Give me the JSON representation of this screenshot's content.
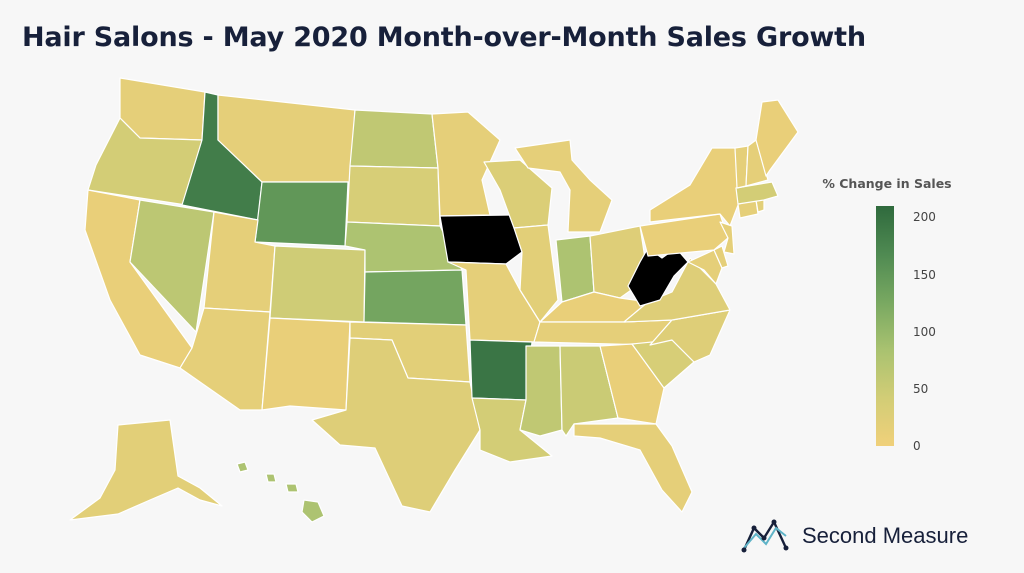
{
  "title": "Hair Salons - May 2020 Month-over-Month Sales Growth",
  "legend": {
    "title": "% Change in Sales",
    "min": 0,
    "max": 210,
    "ticks": [
      "200",
      "150",
      "100",
      "50",
      "0"
    ],
    "colors": [
      "#f0d07a",
      "#d2cd76",
      "#a9c270",
      "#78a861",
      "#4f8a52",
      "#2f6a3d"
    ]
  },
  "brand": {
    "name": "Second Measure",
    "logo_icon": "line-chart-logo-icon"
  },
  "states": [
    {
      "abbr": "WA",
      "value": 15
    },
    {
      "abbr": "OR",
      "value": 40
    },
    {
      "abbr": "CA",
      "value": 10
    },
    {
      "abbr": "NV",
      "value": 65
    },
    {
      "abbr": "ID",
      "value": 185
    },
    {
      "abbr": "MT",
      "value": 15
    },
    {
      "abbr": "WY",
      "value": 150
    },
    {
      "abbr": "UT",
      "value": 15
    },
    {
      "abbr": "AZ",
      "value": 15
    },
    {
      "abbr": "CO",
      "value": 45
    },
    {
      "abbr": "NM",
      "value": 10
    },
    {
      "abbr": "ND",
      "value": 60
    },
    {
      "abbr": "SD",
      "value": 35
    },
    {
      "abbr": "NE",
      "value": 80
    },
    {
      "abbr": "KS",
      "value": 130
    },
    {
      "abbr": "OK",
      "value": 20
    },
    {
      "abbr": "TX",
      "value": 25
    },
    {
      "abbr": "MN",
      "value": 15
    },
    {
      "abbr": "IA",
      "value": "black"
    },
    {
      "abbr": "MO",
      "value": 15
    },
    {
      "abbr": "AR",
      "value": 195
    },
    {
      "abbr": "LA",
      "value": 40
    },
    {
      "abbr": "WI",
      "value": 30
    },
    {
      "abbr": "IL",
      "value": 20
    },
    {
      "abbr": "MI",
      "value": 15
    },
    {
      "abbr": "IN",
      "value": 80
    },
    {
      "abbr": "OH",
      "value": 25
    },
    {
      "abbr": "KY",
      "value": 10
    },
    {
      "abbr": "TN",
      "value": 15
    },
    {
      "abbr": "MS",
      "value": 60
    },
    {
      "abbr": "AL",
      "value": 50
    },
    {
      "abbr": "GA",
      "value": 10
    },
    {
      "abbr": "FL",
      "value": 15
    },
    {
      "abbr": "SC",
      "value": 35
    },
    {
      "abbr": "NC",
      "value": 25
    },
    {
      "abbr": "VA",
      "value": 25
    },
    {
      "abbr": "WV",
      "value": "black"
    },
    {
      "abbr": "PA",
      "value": 10
    },
    {
      "abbr": "NY",
      "value": 10
    },
    {
      "abbr": "MD",
      "value": 15
    },
    {
      "abbr": "DE",
      "value": 15
    },
    {
      "abbr": "NJ",
      "value": 15
    },
    {
      "abbr": "CT",
      "value": 15
    },
    {
      "abbr": "RI",
      "value": 20
    },
    {
      "abbr": "MA",
      "value": 40
    },
    {
      "abbr": "VT",
      "value": 15
    },
    {
      "abbr": "NH",
      "value": 15
    },
    {
      "abbr": "ME",
      "value": 10
    },
    {
      "abbr": "AK",
      "value": 20
    },
    {
      "abbr": "HI",
      "value": 80
    }
  ]
}
